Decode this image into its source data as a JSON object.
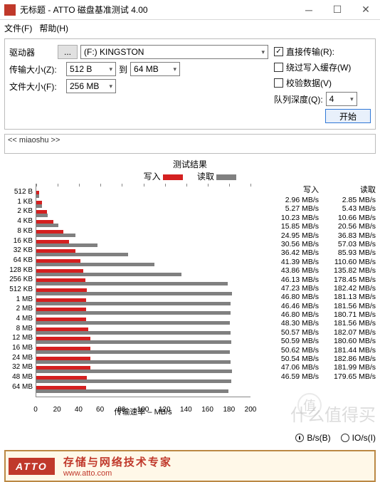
{
  "window": {
    "title": "无标题 - ATTO 磁盘基准测试 4.00"
  },
  "menu": {
    "file": "文件(F)",
    "help": "帮助(H)"
  },
  "controls": {
    "drive_label": "驱动器",
    "drive_browse": "...",
    "drive_value": "(F:) KINGSTON",
    "xfer_label": "传输大小(Z):",
    "xfer_from": "512 B",
    "xfer_to_lbl": "到",
    "xfer_to": "64 MB",
    "file_label": "文件大小(F):",
    "file_value": "256 MB"
  },
  "options": {
    "direct": {
      "label": "直接传输(R):",
      "checked": true
    },
    "bypass": {
      "label": "绕过写入缓存(W)",
      "checked": false
    },
    "verify": {
      "label": "校验数据(V)",
      "checked": false
    },
    "qd_label": "队列深度(Q):",
    "qd_value": "4",
    "start": "开始"
  },
  "description": "<< miaoshu >>",
  "legend": {
    "title": "测试结果",
    "write": "写入",
    "read": "读取"
  },
  "colors": {
    "write": "#d42020",
    "read": "#808080",
    "accent": "#c0392b",
    "grid": "#888888"
  },
  "chart": {
    "type": "bar",
    "xlabel": "传输速率 – MB/s",
    "xlim": [
      0,
      200
    ],
    "xtick_step": 20,
    "xticks": [
      "0",
      "20",
      "40",
      "60",
      "80",
      "100",
      "120",
      "140",
      "160",
      "180",
      "200"
    ],
    "rows": [
      {
        "label": "512 B",
        "write": 2.96,
        "read": 2.85
      },
      {
        "label": "1 KB",
        "write": 5.27,
        "read": 5.43
      },
      {
        "label": "2 KB",
        "write": 10.23,
        "read": 10.66
      },
      {
        "label": "4 KB",
        "write": 15.85,
        "read": 20.56
      },
      {
        "label": "8 KB",
        "write": 24.95,
        "read": 36.83
      },
      {
        "label": "16 KB",
        "write": 30.56,
        "read": 57.03
      },
      {
        "label": "32 KB",
        "write": 36.42,
        "read": 85.93
      },
      {
        "label": "64 KB",
        "write": 41.39,
        "read": 110.6
      },
      {
        "label": "128 KB",
        "write": 43.86,
        "read": 135.82
      },
      {
        "label": "256 KB",
        "write": 46.13,
        "read": 178.45
      },
      {
        "label": "512 KB",
        "write": 47.23,
        "read": 182.42
      },
      {
        "label": "1 MB",
        "write": 46.8,
        "read": 181.13
      },
      {
        "label": "2 MB",
        "write": 46.46,
        "read": 181.56
      },
      {
        "label": "4 MB",
        "write": 46.8,
        "read": 180.71
      },
      {
        "label": "8 MB",
        "write": 48.3,
        "read": 181.56
      },
      {
        "label": "12 MB",
        "write": 50.57,
        "read": 182.07
      },
      {
        "label": "16 MB",
        "write": 50.59,
        "read": 180.6
      },
      {
        "label": "24 MB",
        "write": 50.62,
        "read": 181.44
      },
      {
        "label": "32 MB",
        "write": 50.54,
        "read": 182.86
      },
      {
        "label": "48 MB",
        "write": 47.06,
        "read": 181.99
      },
      {
        "label": "64 MB",
        "write": 46.59,
        "read": 179.65
      }
    ]
  },
  "table": {
    "write_hdr": "写入",
    "read_hdr": "读取",
    "unit": "MB/s"
  },
  "units": {
    "bs": "B/s(B)",
    "ios": "IO/s(I)"
  },
  "footer": {
    "logo": "ATTO",
    "slogan": "存储与网络技术专家",
    "url": "www.atto.com"
  },
  "watermark": {
    "badge": "值",
    "text": "什么值得买"
  }
}
